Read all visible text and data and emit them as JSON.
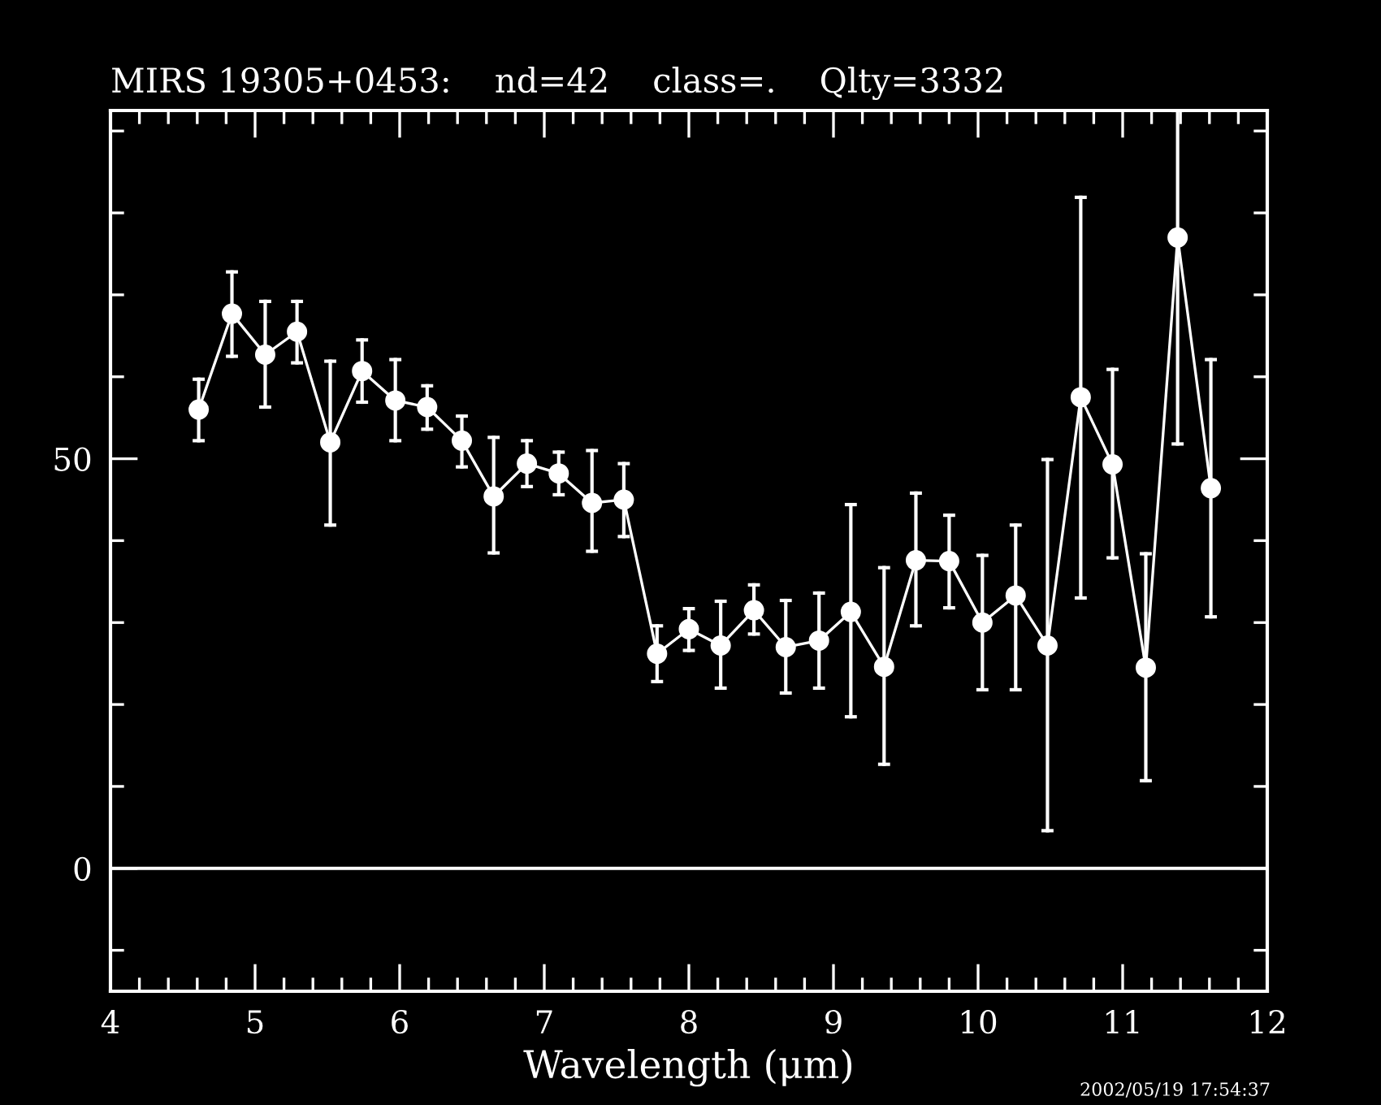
{
  "chart_data": {
    "type": "line",
    "title": "MIRS 19305+0453:    nd=42    class=.    Qlty=3332",
    "xlabel": "Wavelength (μm)",
    "annotations": [
      "2002/05/19 17:54:37"
    ],
    "x": [
      4.61,
      4.84,
      5.07,
      5.29,
      5.52,
      5.74,
      5.97,
      6.19,
      6.43,
      6.65,
      6.88,
      7.1,
      7.33,
      7.55,
      7.78,
      8.0,
      8.22,
      8.45,
      8.67,
      8.9,
      9.12,
      9.35,
      9.57,
      9.8,
      10.03,
      10.26,
      10.48,
      10.71,
      10.93,
      11.16,
      11.38,
      11.61
    ],
    "series": [
      {
        "color": "#ffffff",
        "values": [
          56.0,
          67.7,
          62.7,
          65.5,
          52.0,
          60.7,
          57.1,
          56.3,
          52.2,
          45.4,
          49.4,
          48.2,
          44.6,
          45.0,
          26.2,
          29.2,
          27.2,
          31.5,
          27.0,
          27.8,
          31.3,
          24.6,
          37.6,
          37.5,
          30.0,
          33.3,
          27.2,
          57.5,
          49.3,
          24.5,
          77.0,
          46.4
        ],
        "errors": [
          [
            52.2,
            59.7
          ],
          [
            62.5,
            72.8
          ],
          [
            56.3,
            69.2
          ],
          [
            61.7,
            69.2
          ],
          [
            41.9,
            61.9
          ],
          [
            56.9,
            64.5
          ],
          [
            52.2,
            62.1
          ],
          [
            53.6,
            58.9
          ],
          [
            49.0,
            55.2
          ],
          [
            38.5,
            52.6
          ],
          [
            46.6,
            52.2
          ],
          [
            45.6,
            50.8
          ],
          [
            38.7,
            51.0
          ],
          [
            40.5,
            49.4
          ],
          [
            22.8,
            29.6
          ],
          [
            26.6,
            31.7
          ],
          [
            22.0,
            32.6
          ],
          [
            28.6,
            34.6
          ],
          [
            21.4,
            32.7
          ],
          [
            22.0,
            33.6
          ],
          [
            18.5,
            44.4
          ],
          [
            12.7,
            36.7
          ],
          [
            29.6,
            45.8
          ],
          [
            31.8,
            43.1
          ],
          [
            21.8,
            38.2
          ],
          [
            21.8,
            41.9
          ],
          [
            4.6,
            49.9
          ],
          [
            33.0,
            81.9
          ],
          [
            37.9,
            60.9
          ],
          [
            10.7,
            38.4
          ],
          [
            51.8,
            92.5
          ],
          [
            30.7,
            62.1
          ]
        ]
      }
    ],
    "marker": "circle",
    "line_style": "solid",
    "grid": false,
    "legend": false,
    "xlim": [
      4,
      12
    ],
    "ylim": [
      -15,
      92.5
    ],
    "xticks": [
      4,
      {
        "value": 4.2,
        "label": null
      },
      {
        "value": 4.4,
        "label": null
      },
      {
        "value": 4.6,
        "label": null
      },
      {
        "value": 4.8,
        "label": null
      },
      5,
      {
        "value": 5.2,
        "label": null
      },
      {
        "value": 5.4,
        "label": null
      },
      {
        "value": 5.6,
        "label": null
      },
      {
        "value": 5.8,
        "label": null
      },
      6,
      {
        "value": 6.2,
        "label": null
      },
      {
        "value": 6.4,
        "label": null
      },
      {
        "value": 6.6,
        "label": null
      },
      {
        "value": 6.8,
        "label": null
      },
      7,
      {
        "value": 7.2,
        "label": null
      },
      {
        "value": 7.4,
        "label": null
      },
      {
        "value": 7.6,
        "label": null
      },
      {
        "value": 7.8,
        "label": null
      },
      8,
      {
        "value": 8.2,
        "label": null
      },
      {
        "value": 8.4,
        "label": null
      },
      {
        "value": 8.6,
        "label": null
      },
      {
        "value": 8.8,
        "label": null
      },
      9,
      {
        "value": 9.2,
        "label": null
      },
      {
        "value": 9.4,
        "label": null
      },
      {
        "value": 9.6,
        "label": null
      },
      {
        "value": 9.8,
        "label": null
      },
      10,
      {
        "value": 10.2,
        "label": null
      },
      {
        "value": 10.4,
        "label": null
      },
      {
        "value": 10.6,
        "label": null
      },
      {
        "value": 10.8,
        "label": null
      },
      11,
      {
        "value": 11.2,
        "label": null
      },
      {
        "value": 11.4,
        "label": null
      },
      {
        "value": 11.6,
        "label": null
      },
      {
        "value": 11.8,
        "label": null
      },
      12
    ],
    "yticks": [
      {
        "value": -10,
        "label": null
      },
      0,
      {
        "value": 10,
        "label": null
      },
      {
        "value": 20,
        "label": null
      },
      {
        "value": 30,
        "label": null
      },
      {
        "value": 40,
        "label": null
      },
      50,
      {
        "value": 60,
        "label": null
      },
      {
        "value": 70,
        "label": null
      },
      {
        "value": 80,
        "label": null
      },
      {
        "value": 90,
        "label": null
      }
    ],
    "ref_lines": [
      {
        "axis": "y",
        "value": 0,
        "color": "#ffffff",
        "line_style": "solid"
      }
    ]
  }
}
